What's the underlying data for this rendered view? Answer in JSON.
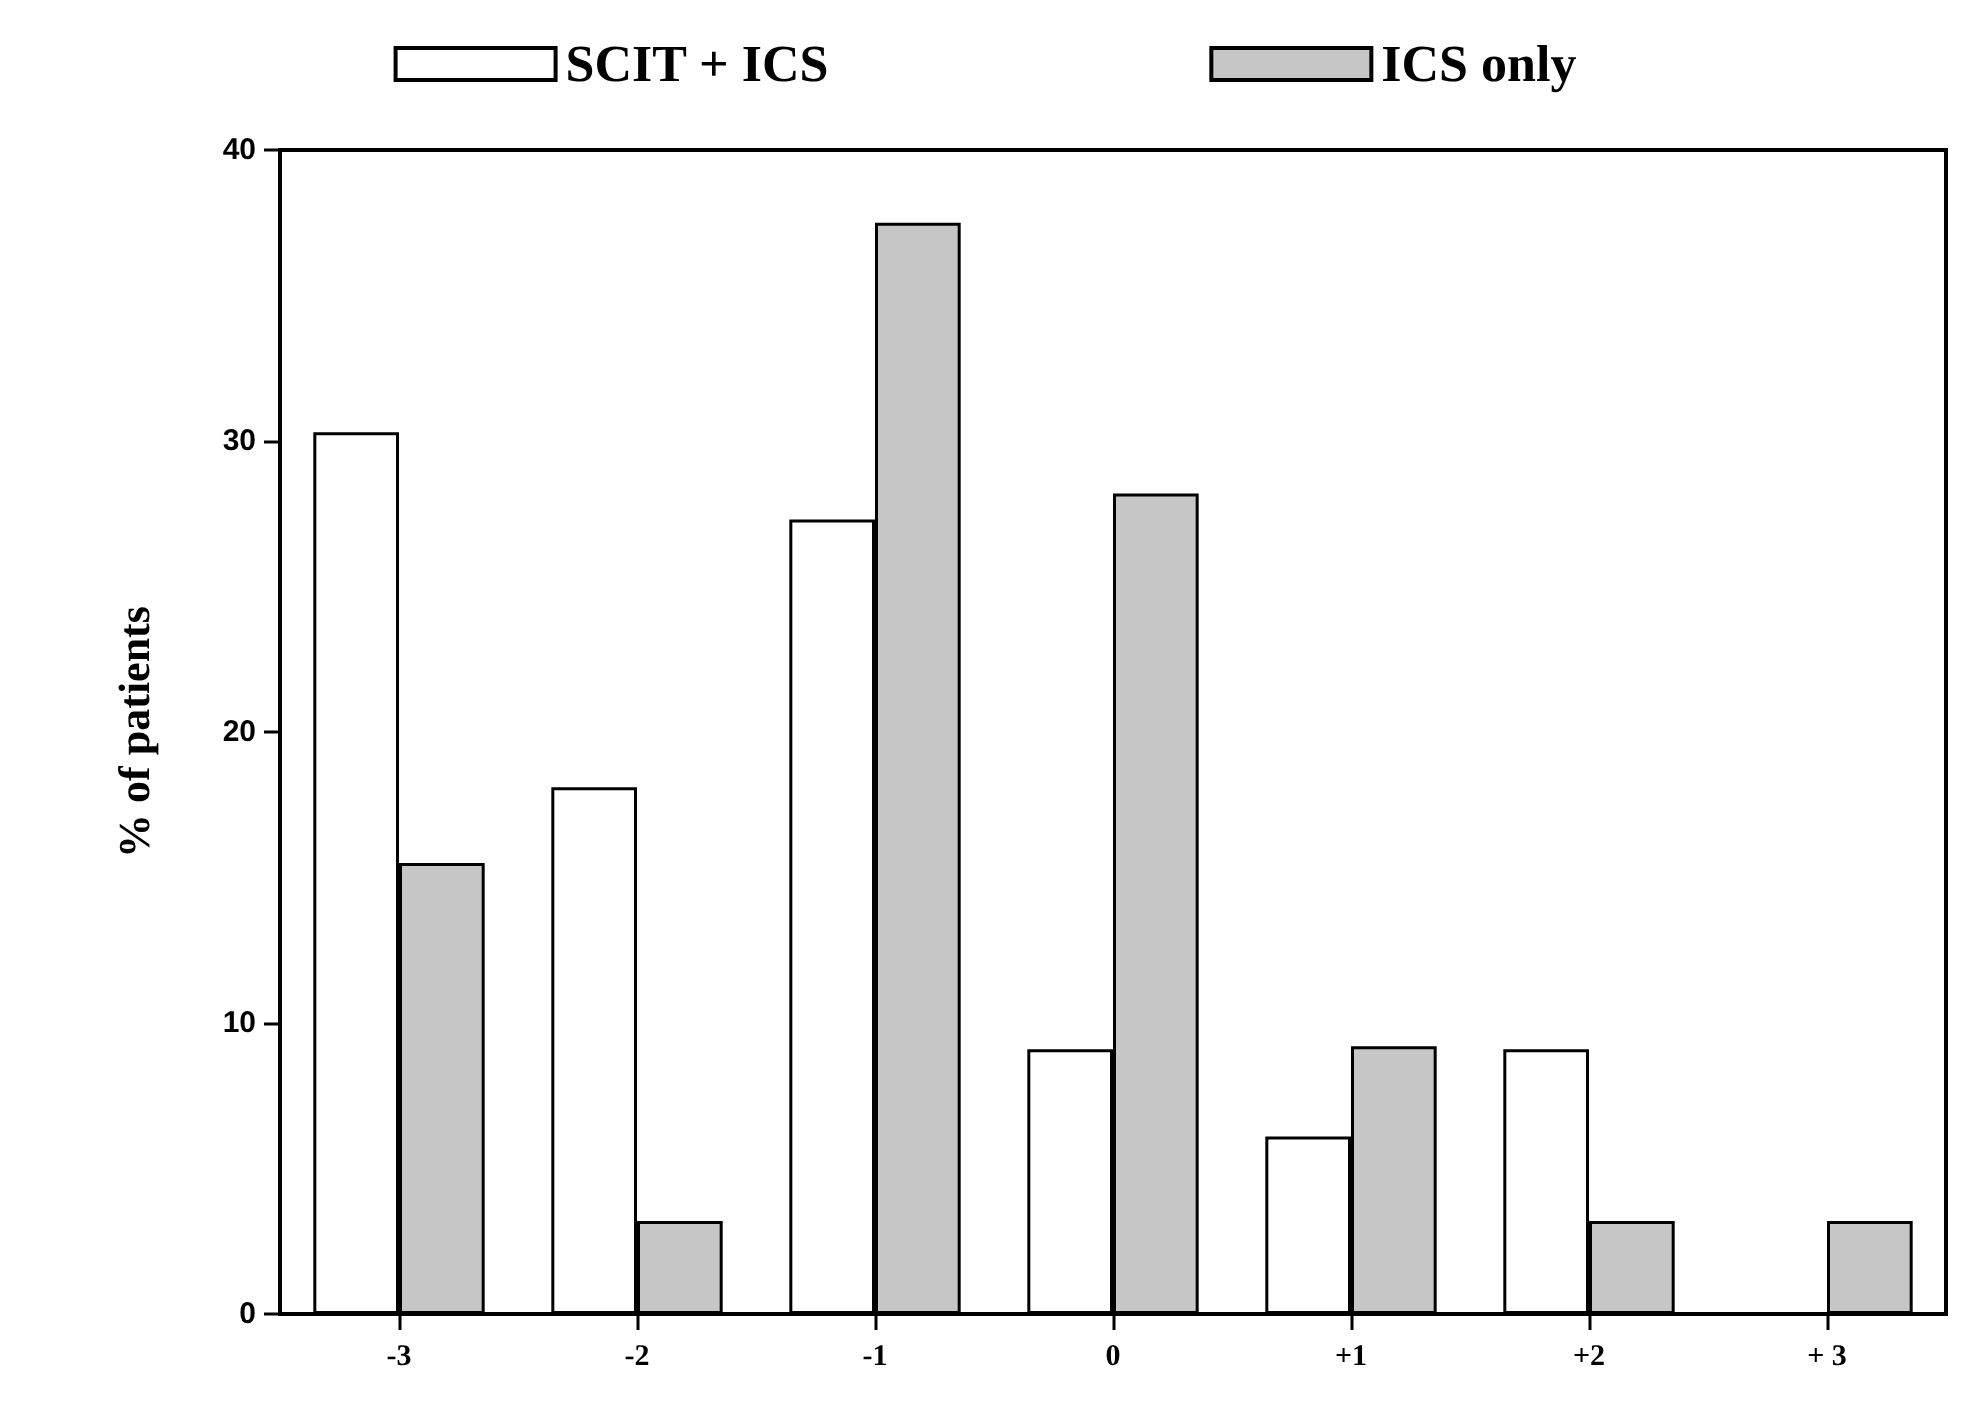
{
  "chart_data": {
    "type": "bar",
    "ylabel": "% of patients",
    "categories": [
      "-3",
      "-2",
      "-1",
      "0",
      "+1",
      "+2",
      "+ 3"
    ],
    "series": [
      {
        "name": "SCIT + ICS",
        "color": "#ffffff",
        "values": [
          30.3,
          18.1,
          27.3,
          9.1,
          6.1,
          9.1,
          0
        ]
      },
      {
        "name": "ICS only",
        "color": "#c6c6c6",
        "values": [
          15.5,
          3.2,
          37.5,
          28.2,
          9.2,
          3.2,
          3.2
        ]
      }
    ],
    "ylim": [
      0,
      40
    ],
    "yticks": [
      0,
      10,
      20,
      30,
      40
    ],
    "grid": false,
    "legend": "top"
  }
}
